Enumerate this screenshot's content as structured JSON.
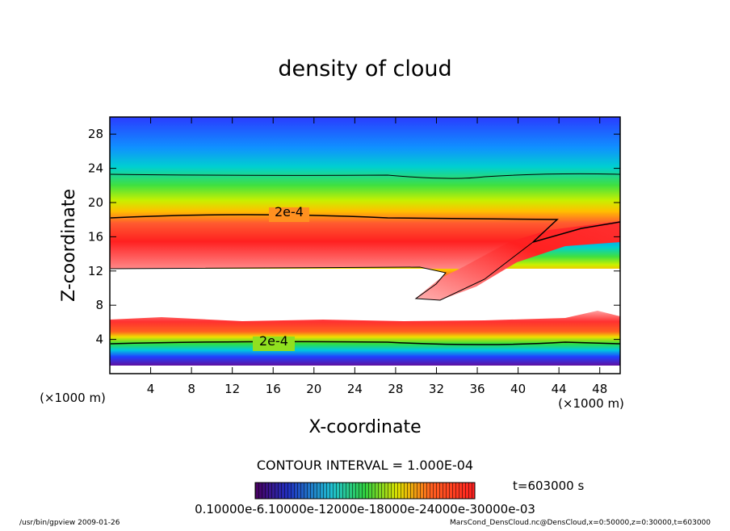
{
  "chart_data": {
    "type": "contour",
    "title": "density of cloud",
    "x_label": "X-coordinate",
    "y_label": "Z-coordinate",
    "x_unit": "(×1000 m)",
    "y_unit": "(×1000 m)",
    "xlim": [
      0,
      50
    ],
    "ylim": [
      0,
      30
    ],
    "xticks": [
      4,
      8,
      12,
      16,
      20,
      24,
      28,
      32,
      36,
      40,
      44,
      48
    ],
    "yticks": [
      4,
      8,
      12,
      16,
      20,
      24,
      28
    ],
    "contour_labels": [
      "2e-4",
      "2e-4"
    ],
    "contour_interval": "CONTOUR INTERVAL = 1.000E-04",
    "time_label": "t=603000 s",
    "colorbar_label": "0.10000e-6.10000e-12000e-18000e-24000e-30000e-03",
    "footer_left": "/usr/bin/gpview  2009-01-26",
    "footer_right": "MarsCond_DensCloud.nc@DensCloud,x=0:50000,z=0:30000,t=603000"
  }
}
